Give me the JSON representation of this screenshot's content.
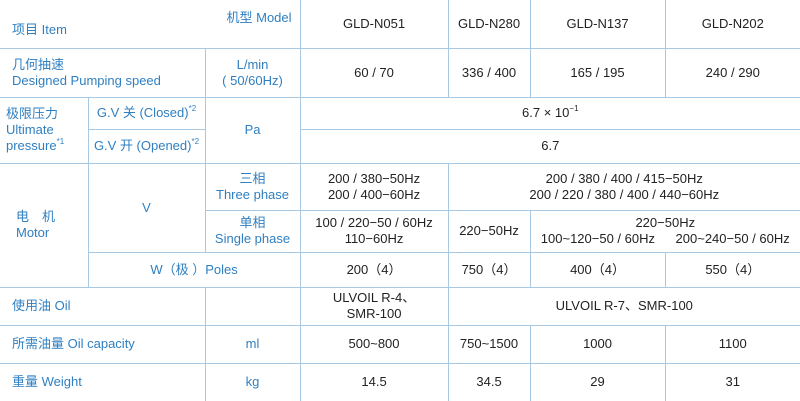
{
  "header": {
    "model_label": "机型 Model",
    "item_label": "项目 Item",
    "models": [
      "GLD-N051",
      "GLD-N280",
      "GLD-N137",
      "GLD-N202"
    ]
  },
  "pumping_speed": {
    "label": [
      "几何抽速",
      "Designed Pumping speed"
    ],
    "unit": [
      "L/min",
      "( 50/60Hz)"
    ],
    "values": [
      "60 / 70",
      "336 / 400",
      "165 / 195",
      "240 / 290"
    ]
  },
  "ultimate_pressure": {
    "label": [
      "极限压力",
      "Ultimate",
      "pressure"
    ],
    "label_sup": "*1",
    "unit": "Pa",
    "closed": {
      "label": "G.V 关 (Closed)",
      "sup": "*2",
      "value": "6.7 × 10",
      "value_sup": "−1"
    },
    "opened": {
      "label": "G.V 开 (Opened)",
      "sup": "*2",
      "value": "6.7"
    }
  },
  "motor": {
    "label": [
      "电　机",
      "Motor"
    ],
    "v_label": "V",
    "three_phase": {
      "label": [
        "三相",
        "Three phase"
      ],
      "n051": [
        "200 / 380−50Hz",
        "200 / 400−60Hz"
      ],
      "others": [
        "200 / 380 / 400 / 415−50Hz",
        "200 / 220 / 380 / 400 / 440−60Hz"
      ]
    },
    "single_phase": {
      "label": [
        "单相",
        "Single phase"
      ],
      "n051": [
        "100 / 220−50 / 60Hz",
        "110−60Hz"
      ],
      "n280": "220−50Hz",
      "others_top": "220−50Hz",
      "n137": "100~120−50 / 60Hz",
      "n202": "200~240−50 / 60Hz"
    },
    "poles": {
      "label": "W（极 ）Poles",
      "values": [
        "200（4）",
        "750（4）",
        "400（4）",
        "550（4）"
      ]
    }
  },
  "oil": {
    "label": "使用油 Oil",
    "n051": [
      "ULVOIL R-4、",
      "SMR-100"
    ],
    "others": "ULVOIL R-7、SMR-100"
  },
  "oil_capacity": {
    "label": "所需油量 Oil capacity",
    "unit": "ml",
    "values": [
      "500~800",
      "750~1500",
      "1000",
      "1100"
    ]
  },
  "weight": {
    "label": "重量 Weight",
    "unit": "kg",
    "values": [
      "14.5",
      "34.5",
      "29",
      "31"
    ]
  }
}
